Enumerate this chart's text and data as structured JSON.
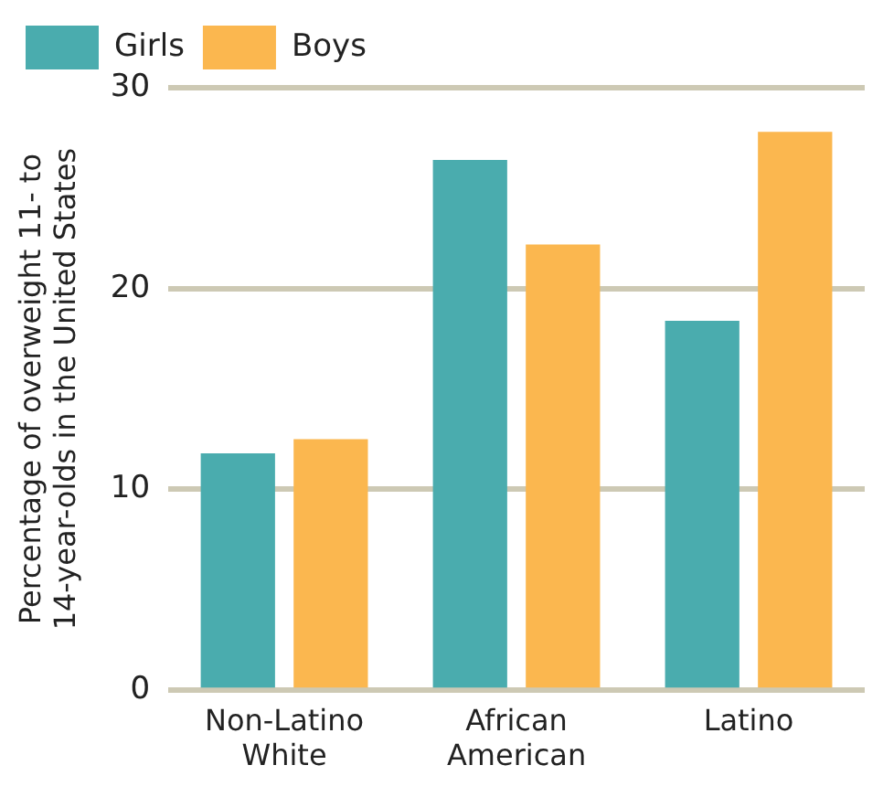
{
  "chart_data": {
    "type": "bar",
    "ylabel": "Percentage of overweight 11- to 14-year-olds in the United States",
    "categories": [
      "Non-Latino White",
      "African American",
      "Latino"
    ],
    "series": [
      {
        "name": "Girls",
        "color": "#4aacae",
        "values": [
          11.8,
          26.4,
          18.4
        ]
      },
      {
        "name": "Boys",
        "color": "#fbb74f",
        "values": [
          12.5,
          22.2,
          27.8
        ]
      }
    ],
    "ylim": [
      0,
      30
    ],
    "yticks": [
      0,
      10,
      20,
      30
    ],
    "grid": "y",
    "legend": "top left"
  }
}
